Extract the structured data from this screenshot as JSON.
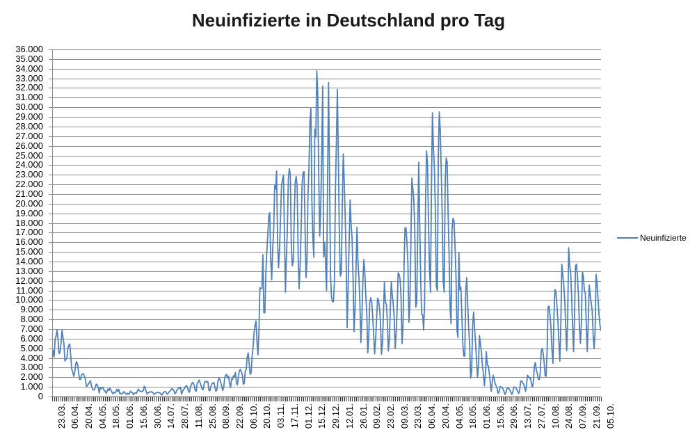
{
  "title": "Neuinfizierte in Deutschland pro Tag",
  "legend": {
    "series_label": "Neuinfizierte"
  },
  "colors": {
    "series_line": "#4F81BD",
    "gridline": "#8c8c8c",
    "axis": "#5a5a5a",
    "day_ticks": "#3a3a3a",
    "text": "#000000",
    "title_text": "#1a1a1a"
  },
  "chart_data": {
    "type": "line",
    "title": "Neuinfizierte in Deutschland pro Tag",
    "xlabel": "",
    "ylabel": "",
    "ylim": [
      0,
      36000
    ],
    "y_tick_step": 1000,
    "grid": true,
    "legend_position": "right",
    "x_label_every_n_points": 14,
    "y_tick_labels": [
      "0",
      "1.000",
      "2.000",
      "3.000",
      "4.000",
      "5.000",
      "6.000",
      "7.000",
      "8.000",
      "9.000",
      "10.000",
      "11.000",
      "12.000",
      "13.000",
      "14.000",
      "15.000",
      "16.000",
      "17.000",
      "18.000",
      "19.000",
      "20.000",
      "21.000",
      "22.000",
      "23.000",
      "24.000",
      "25.000",
      "26.000",
      "27.000",
      "28.000",
      "29.000",
      "30.000",
      "31.000",
      "32.000",
      "33.000",
      "34.000",
      "35.000",
      "36.000"
    ],
    "x_tick_labels": [
      "23.03.",
      "06.04.",
      "20.04.",
      "04.05.",
      "18.05.",
      "01.06.",
      "15.06.",
      "30.06.",
      "14.07.",
      "28.07.",
      "11.08.",
      "25.08.",
      "08.09.",
      "22.09.",
      "06.10.",
      "20.10.",
      "03.11.",
      "17.11.",
      "01.12.",
      "15.12.",
      "29.12.",
      "12.01.",
      "26.01.",
      "09.02.",
      "23.02.",
      "09.03.",
      "23.03.",
      "06.04.",
      "20.04.",
      "04.05.",
      "18.05.",
      "01.06.",
      "15.06.",
      "29.06.",
      "13.07.",
      "27.07.",
      "10.08.",
      "24.08.",
      "07.09.",
      "21.09.",
      "05.10."
    ],
    "series": [
      {
        "name": "Neuinfizierte",
        "color": "#4F81BD",
        "values": [
          4050,
          4765,
          4120,
          5940,
          6295,
          6885,
          5935,
          4445,
          4615,
          5455,
          6860,
          6175,
          5480,
          3680,
          3835,
          4005,
          4975,
          5325,
          5455,
          4135,
          2825,
          2540,
          2085,
          2490,
          3380,
          3610,
          3305,
          2460,
          1780,
          1790,
          2240,
          2355,
          2340,
          2060,
          1740,
          1020,
          1145,
          1305,
          1480,
          1640,
          1150,
          795,
          680,
          685,
          950,
          1285,
          1210,
          915,
          360,
          935,
          800,
          935,
          915,
          620,
          585,
          340,
          515,
          800,
          640,
          855,
          640,
          430,
          290,
          430,
          360,
          505,
          740,
          510,
          740,
          285,
          333,
          270,
          340,
          500,
          410,
          301,
          215,
          350,
          260,
          350,
          555,
          425,
          380,
          190,
          345,
          380,
          345,
          580,
          770,
          600,
          540,
          540,
          500,
          630,
          1060,
          890,
          470,
          260,
          400,
          470,
          450,
          505,
          445,
          385,
          220,
          300,
          390,
          400,
          440,
          395,
          365,
          240,
          160,
          350,
          445,
          530,
          455,
          290,
          250,
          455,
          520,
          635,
          815,
          780,
          665,
          305,
          340,
          635,
          740,
          900,
          870,
          955,
          240,
          510,
          740,
          825,
          1045,
          1125,
          955,
          555,
          435,
          965,
          1225,
          1445,
          1415,
          1120,
          625,
          560,
          1390,
          1510,
          1705,
          1425,
          1105,
          785,
          710,
          1275,
          1575,
          1510,
          1570,
          1480,
          610,
          615,
          1055,
          1340,
          1375,
          1450,
          1005,
          545,
          680,
          1500,
          1890,
          1790,
          1460,
          1055,
          630,
          920,
          1905,
          2195,
          2290,
          1915,
          2095,
          1345,
          935,
          1820,
          1770,
          2145,
          2055,
          2510,
          1410,
          1200,
          2085,
          2670,
          2825,
          2565,
          2290,
          1275,
          1380,
          2635,
          2825,
          4060,
          4520,
          3485,
          2295,
          2465,
          4125,
          5130,
          6640,
          7335,
          7830,
          5660,
          4325,
          6870,
          11290,
          11185,
          11240,
          14715,
          8685,
          8690,
          12745,
          14965,
          16775,
          18685,
          19060,
          14175,
          12100,
          15355,
          17215,
          21870,
          21510,
          23400,
          16015,
          13365,
          15330,
          18485,
          21865,
          22460,
          22965,
          16945,
          10825,
          14425,
          17560,
          22600,
          23650,
          22965,
          15740,
          13555,
          14060,
          18630,
          22270,
          22805,
          21695,
          14615,
          11170,
          13605,
          17270,
          22045,
          23225,
          23320,
          17765,
          12330,
          14055,
          20815,
          23680,
          28440,
          29875,
          20200,
          16360,
          14435,
          27730,
          26925,
          33775,
          31300,
          22770,
          16645,
          19530,
          24740,
          32195,
          14455,
          16000,
          13755,
          10975,
          22460,
          32550,
          22925,
          12690,
          10315,
          9845,
          9845,
          11895,
          21240,
          26390,
          31850,
          24695,
          16945,
          12495,
          12800,
          19600,
          25165,
          22365,
          18675,
          13880,
          7140,
          11365,
          15975,
          20395,
          17865,
          16415,
          12255,
          6730,
          8975,
          13200,
          17555,
          14020,
          12320,
          9705,
          5605,
          8075,
          11910,
          14210,
          12910,
          10485,
          8615,
          4530,
          6115,
          9705,
          10235,
          9860,
          8350,
          6460,
          4425,
          5850,
          8010,
          10205,
          9995,
          9165,
          7680,
          4370,
          5560,
          8605,
          11870,
          9765,
          9555,
          7890,
          4730,
          5875,
          9020,
          11915,
          10580,
          9555,
          8105,
          5010,
          6605,
          9145,
          12835,
          12675,
          12165,
          10175,
          5480,
          7485,
          13435,
          17505,
          17485,
          16035,
          13735,
          7705,
          9545,
          15815,
          22655,
          21575,
          20475,
          17180,
          9270,
          9755,
          17050,
          24300,
          18135,
          12195,
          8500,
          8495,
          6885,
          9675,
          20405,
          25465,
          24095,
          17855,
          13245,
          10810,
          21695,
          29425,
          25830,
          23805,
          19185,
          11435,
          10975,
          24885,
          29520,
          27545,
          23390,
          18775,
          11905,
          10825,
          22230,
          24735,
          24330,
          18935,
          14600,
          9160,
          7535,
          17420,
          18485,
          18235,
          15685,
          12655,
          6920,
          6125,
          14910,
          11040,
          11335,
          8500,
          5410,
          4210,
          4185,
          11040,
          12325,
          9510,
          7080,
          5425,
          1910,
          2625,
          7380,
          8770,
          7150,
          5425,
          3850,
          1980,
          3255,
          6315,
          5425,
          4640,
          3165,
          2440,
          1115,
          2295,
          4640,
          3255,
          3185,
          2440,
          1490,
          550,
          1455,
          2205,
          1845,
          1330,
          1110,
          840,
          345,
          455,
          1015,
          1010,
          950,
          775,
          540,
          220,
          405,
          810,
          890,
          805,
          650,
          465,
          210,
          440,
          985,
          970,
          950,
          745,
          530,
          325,
          645,
          1550,
          1640,
          1455,
          1290,
          1030,
          545,
          1185,
          2205,
          2090,
          1890,
          1920,
          1385,
          960,
          1545,
          3140,
          3540,
          2770,
          2400,
          1810,
          1765,
          2480,
          4700,
          4995,
          4460,
          3510,
          2125,
          2125,
          4750,
          9280,
          9375,
          8400,
          7050,
          4730,
          3445,
          8325,
          11100,
          10835,
          9450,
          7880,
          5750,
          3670,
          7345,
          13715,
          12625,
          11560,
          10005,
          7210,
          4750,
          8235,
          15430,
          13530,
          12970,
          10455,
          7335,
          4665,
          8425,
          13565,
          13715,
          12455,
          10455,
          7210,
          5510,
          7775,
          12925,
          12455,
          11020,
          10695,
          7345,
          4665,
          7775,
          11560,
          10455,
          9725,
          8900,
          6380,
          4970,
          6725,
          12670,
          11645,
          10120,
          8515,
          7345,
          6850
        ]
      }
    ]
  }
}
